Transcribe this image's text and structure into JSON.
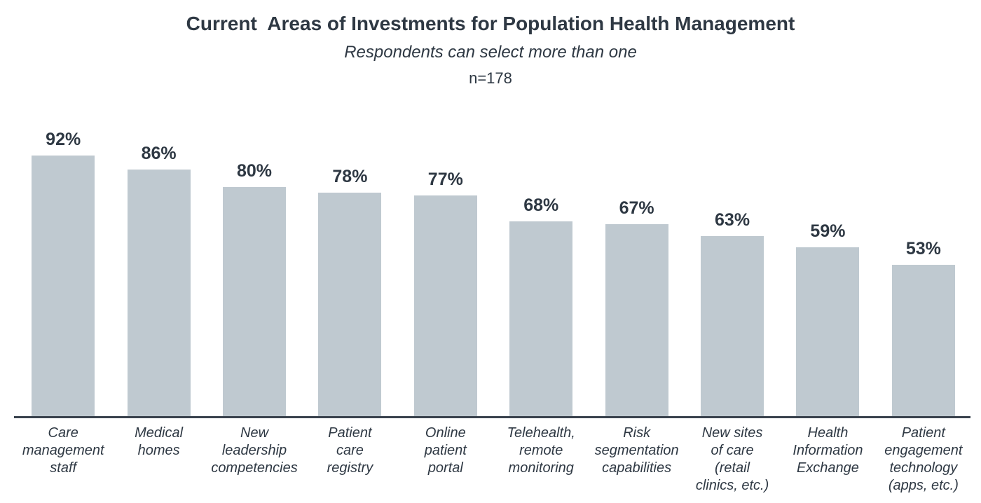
{
  "chart_data": {
    "type": "bar",
    "title": "Current  Areas of Investments for Population Health Management",
    "subtitle": "Respondents can select more than one",
    "sample_label": "n=178",
    "categories": [
      "Care management staff",
      "Medical homes",
      "New leadership competencies",
      "Patient care registry",
      "Online patient portal",
      "Telehealth, remote monitoring",
      "Risk segmentation capabilities",
      "New sites of care (retail clinics, etc.)",
      "Health Information Exchange",
      "Patient engagement technology (apps, etc.)"
    ],
    "category_lines": [
      [
        "Care",
        "management",
        "staff"
      ],
      [
        "Medical",
        "homes"
      ],
      [
        "New",
        "leadership",
        "competencies"
      ],
      [
        "Patient",
        "care",
        "registry"
      ],
      [
        "Online",
        "patient",
        "portal"
      ],
      [
        "Telehealth,",
        "remote",
        "monitoring"
      ],
      [
        "Risk",
        "segmentation",
        "capabilities"
      ],
      [
        "New sites",
        "of care",
        "(retail",
        "clinics, etc.)"
      ],
      [
        "Health",
        "Information",
        "Exchange"
      ],
      [
        "Patient",
        "engagement",
        "technology",
        "(apps, etc.)"
      ]
    ],
    "values": [
      92,
      86,
      80,
      78,
      77,
      68,
      67,
      63,
      59,
      53
    ],
    "value_labels": [
      "92%",
      "86%",
      "80%",
      "78%",
      "77%",
      "68%",
      "67%",
      "63%",
      "59%",
      "53%"
    ],
    "xlabel": "",
    "ylabel": "",
    "ylim": [
      0,
      100
    ],
    "grid": false,
    "legend": false,
    "bar_color": "#bfc9d0",
    "text_color": "#2e3843",
    "axis_color": "#39424d"
  }
}
